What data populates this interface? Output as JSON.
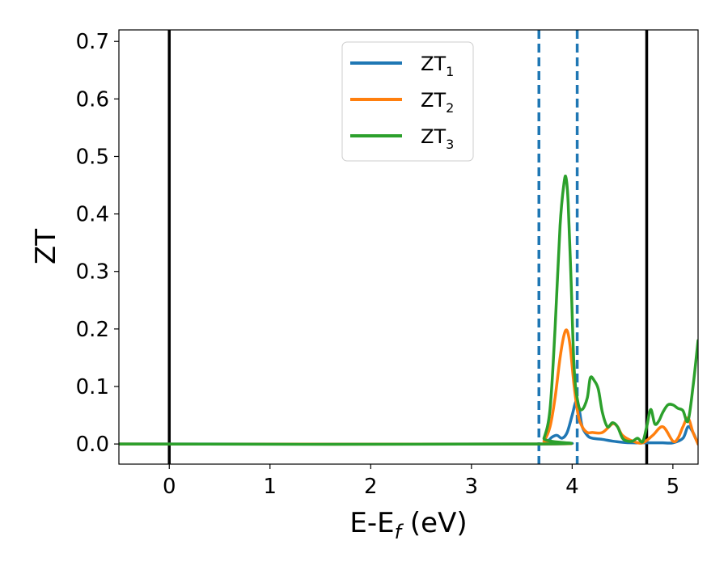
{
  "chart_data": {
    "type": "line",
    "title": "",
    "xlabel": "E-E",
    "xlabel_sub": "f",
    "xlabel_unit": " (eV)",
    "ylabel": "ZT",
    "xlim": [
      -0.5,
      5.25
    ],
    "ylim": [
      -0.035,
      0.72
    ],
    "xticks": [
      0,
      1,
      2,
      3,
      4,
      5
    ],
    "xtick_labels": [
      "0",
      "1",
      "2",
      "3",
      "4",
      "5"
    ],
    "yticks": [
      0.0,
      0.1,
      0.2,
      0.3,
      0.4,
      0.5,
      0.6,
      0.7
    ],
    "ytick_labels": [
      "0.0",
      "0.1",
      "0.2",
      "0.3",
      "0.4",
      "0.5",
      "0.6",
      "0.7"
    ],
    "grid": false,
    "legend_position": "top-center",
    "vlines_solid": [
      0.0,
      4.74
    ],
    "vlines_dashed": [
      3.67,
      4.05
    ],
    "series": [
      {
        "name": "ZT",
        "sub": "1",
        "color": "#1f77b4",
        "x": [
          -0.5,
          3.67,
          3.75,
          3.8,
          3.85,
          3.9,
          3.95,
          4.0,
          4.04,
          4.07,
          4.1,
          4.15,
          4.2,
          4.3,
          4.4,
          4.5,
          4.6,
          4.7,
          4.8,
          4.9,
          5.0,
          5.1,
          5.15,
          5.2,
          5.25
        ],
        "y": [
          0.0,
          0.0,
          0.004,
          0.012,
          0.015,
          0.01,
          0.02,
          0.05,
          0.075,
          0.06,
          0.03,
          0.015,
          0.01,
          0.008,
          0.005,
          0.003,
          0.002,
          0.002,
          0.002,
          0.002,
          0.002,
          0.01,
          0.03,
          0.02,
          0.0
        ]
      },
      {
        "name": "ZT",
        "sub": "2",
        "color": "#ff7f0e",
        "x": [
          -0.5,
          3.67,
          3.72,
          3.78,
          3.83,
          3.88,
          3.92,
          3.95,
          3.98,
          4.02,
          4.06,
          4.1,
          4.15,
          4.2,
          4.3,
          4.4,
          4.45,
          4.5,
          4.6,
          4.7,
          4.8,
          4.9,
          5.0,
          5.05,
          5.1,
          5.15,
          5.2,
          5.25
        ],
        "y": [
          0.0,
          0.0,
          0.005,
          0.03,
          0.08,
          0.15,
          0.19,
          0.197,
          0.17,
          0.1,
          0.05,
          0.03,
          0.02,
          0.02,
          0.02,
          0.035,
          0.03,
          0.015,
          0.005,
          0.002,
          0.015,
          0.03,
          0.005,
          0.01,
          0.03,
          0.045,
          0.02,
          0.0
        ]
      },
      {
        "name": "ZT",
        "sub": "3",
        "color": "#2ca02c",
        "x": [
          -0.5,
          3.67,
          3.72,
          3.78,
          3.83,
          3.88,
          3.92,
          3.94,
          3.96,
          3.99,
          4.02,
          4.06,
          4.1,
          4.15,
          4.18,
          4.22,
          4.26,
          4.3,
          4.35,
          4.4,
          4.45,
          4.5,
          4.55,
          4.6,
          4.65,
          4.7,
          4.74,
          4.78,
          4.82,
          4.86,
          4.9,
          4.95,
          5.0,
          5.05,
          5.1,
          5.15,
          5.2,
          5.25
        ],
        "y": [
          0.0,
          0.0,
          0.01,
          0.06,
          0.2,
          0.38,
          0.455,
          0.462,
          0.42,
          0.28,
          0.13,
          0.07,
          0.06,
          0.08,
          0.115,
          0.11,
          0.095,
          0.055,
          0.03,
          0.037,
          0.03,
          0.01,
          0.005,
          0.005,
          0.01,
          0.004,
          0.03,
          0.06,
          0.035,
          0.04,
          0.055,
          0.068,
          0.068,
          0.062,
          0.058,
          0.04,
          0.1,
          0.18
        ]
      }
    ]
  }
}
